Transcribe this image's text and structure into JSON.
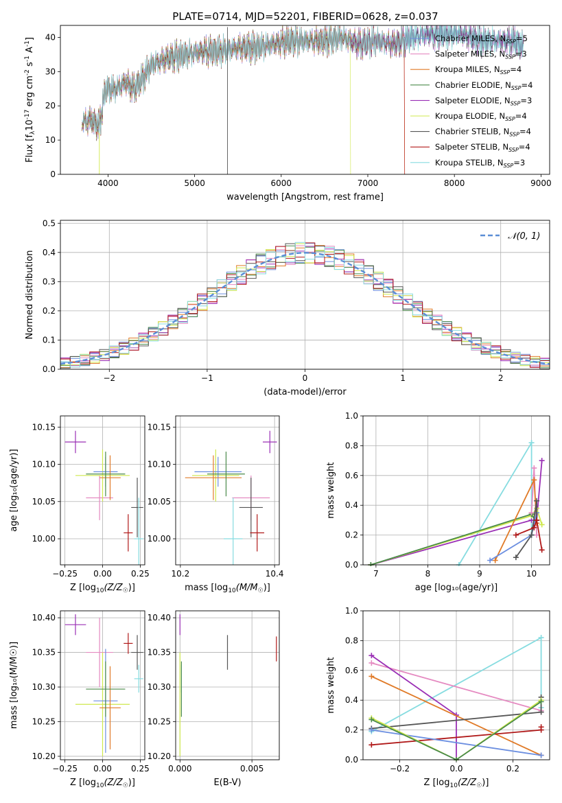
{
  "figure_title": "PLATE=0714, MJD=52201, FIBERID=0628, z=0.037",
  "colors": {
    "Chabrier MILES": "#6b8ee0",
    "Salpeter MILES": "#e58ac1",
    "Kroupa MILES": "#e07a27",
    "Chabrier ELODIE": "#4a8a4a",
    "Salpeter ELODIE": "#9a2fb5",
    "Kroupa ELODIE": "#cfe84c",
    "Chabrier STELIB": "#555555",
    "Salpeter STELIB": "#b01818",
    "Kroupa STELIB": "#86dce0"
  },
  "series_names": [
    "Chabrier MILES",
    "Salpeter MILES",
    "Kroupa MILES",
    "Chabrier ELODIE",
    "Salpeter ELODIE",
    "Kroupa ELODIE",
    "Chabrier STELIB",
    "Salpeter STELIB",
    "Kroupa STELIB"
  ],
  "chart_data": [
    {
      "id": "spectrum",
      "type": "line",
      "title": "PLATE=0714, MJD=52201, FIBERID=0628, z=0.037",
      "xlabel": "wavelength [Angstrom, rest frame]",
      "ylabel": "Flux [f",
      "ylabel_sub": "λ",
      "ylabel_rest": "10",
      "ylabel_sup1": "-17",
      "ylabel_rest2": " erg cm",
      "ylabel_sup2": "-2",
      "ylabel_rest3": " s",
      "ylabel_sup3": "-1",
      "ylabel_rest4": " A",
      "ylabel_sup4": "-1",
      "ylabel_end": "]",
      "xlim": [
        3450,
        9100
      ],
      "ylim": [
        0,
        43.5
      ],
      "xticks": [
        "4000",
        "5000",
        "6000",
        "7000",
        "8000",
        "9000"
      ],
      "yticks": [
        "0",
        "10",
        "20",
        "30",
        "40"
      ],
      "legend_position": "top-right",
      "legend": [
        {
          "label": "Chabrier MILES, N",
          "sub": "SSP",
          "value": "=5"
        },
        {
          "label": "Salpeter MILES, N",
          "sub": "SSP",
          "value": "=3"
        },
        {
          "label": "Kroupa MILES, N",
          "sub": "SSP",
          "value": "=4"
        },
        {
          "label": "Chabrier ELODIE, N",
          "sub": "SSP",
          "value": "=4"
        },
        {
          "label": "Salpeter ELODIE, N",
          "sub": "SSP",
          "value": "=3"
        },
        {
          "label": "Kroupa ELODIE, N",
          "sub": "SSP",
          "value": "=4"
        },
        {
          "label": "Chabrier STELIB, N",
          "sub": "SSP",
          "value": "=4"
        },
        {
          "label": "Salpeter STELIB, N",
          "sub": "SSP",
          "value": "=4"
        },
        {
          "label": "Kroupa STELIB, N",
          "sub": "SSP",
          "value": "=3"
        }
      ],
      "model_spectrum_anchors": [
        [
          3700,
          15
        ],
        [
          3800,
          16
        ],
        [
          3900,
          14
        ],
        [
          3970,
          25
        ],
        [
          4100,
          25
        ],
        [
          4200,
          27
        ],
        [
          4300,
          25
        ],
        [
          4400,
          28
        ],
        [
          4500,
          32
        ],
        [
          4700,
          34
        ],
        [
          4900,
          35
        ],
        [
          5100,
          36
        ],
        [
          5300,
          36
        ],
        [
          5500,
          37
        ],
        [
          5700,
          37
        ],
        [
          5900,
          38
        ],
        [
          6100,
          39
        ],
        [
          6300,
          39
        ],
        [
          6500,
          39
        ],
        [
          6700,
          40
        ],
        [
          6900,
          38
        ],
        [
          7100,
          39
        ],
        [
          7300,
          38
        ],
        [
          7500,
          40
        ],
        [
          7700,
          41
        ],
        [
          7900,
          41
        ],
        [
          8100,
          41
        ],
        [
          8300,
          39
        ],
        [
          8500,
          39
        ],
        [
          8700,
          39
        ],
        [
          8800,
          37
        ]
      ],
      "edge_drops": [
        {
          "series": "Kroupa ELODIE",
          "x": 6800
        },
        {
          "series": "Salpeter STELIB",
          "x": 7420
        },
        {
          "series": "Kroupa MILES",
          "x": 7420
        }
      ]
    },
    {
      "id": "residuals",
      "type": "area",
      "xlabel": "(data-model)/error",
      "ylabel": "Normed distribution",
      "xlim": [
        -2.5,
        2.5
      ],
      "ylim": [
        0,
        0.51
      ],
      "xticks": [
        "−2",
        "−1",
        "0",
        "1",
        "2"
      ],
      "yticks": [
        "0.0",
        "0.1",
        "0.2",
        "0.3",
        "0.4",
        "0.5"
      ],
      "reference_curve": {
        "name": "𝒩(0, 1)",
        "mean": 0,
        "std": 1,
        "color": "#5b8ed6",
        "style": "dashed"
      },
      "legend_position": "top-right",
      "bin_width": 0.1
    },
    {
      "id": "age-vs-Z",
      "type": "scatter",
      "xlabel": "Z [log",
      "xlabel_sub": "10",
      "xlabel_rest": "(Z/Z",
      "xlabel_sub2": "☉",
      "xlabel_end": ")]",
      "ylabel": "age  [log₁₀(age/yr)]",
      "xlim": [
        -0.28,
        0.28
      ],
      "ylim": [
        9.965,
        10.165
      ],
      "xticks": [
        "−0.25",
        "0.00",
        "0.25"
      ],
      "yticks": [
        "10.00",
        "10.05",
        "10.10",
        "10.15"
      ],
      "points": [
        {
          "series": "Salpeter ELODIE",
          "x": -0.18,
          "y": 10.13,
          "xerr": 0.07,
          "yerr": 0.015
        },
        {
          "series": "Salpeter MILES",
          "x": -0.02,
          "y": 10.055,
          "xerr": 0.09,
          "yerr": 0.03
        },
        {
          "series": "Kroupa ELODIE",
          "x": 0.0,
          "y": 10.085,
          "xerr": 0.18,
          "yerr": 0.035
        },
        {
          "series": "Chabrier MILES",
          "x": 0.02,
          "y": 10.09,
          "xerr": 0.08,
          "yerr": 0.02
        },
        {
          "series": "Kroupa MILES",
          "x": 0.05,
          "y": 10.082,
          "xerr": 0.07,
          "yerr": 0.03
        },
        {
          "series": "Chabrier ELODIE",
          "x": 0.02,
          "y": 10.087,
          "xerr": 0.13,
          "yerr": 0.03
        },
        {
          "series": "Chabrier STELIB",
          "x": 0.23,
          "y": 10.042,
          "xerr": 0.04,
          "yerr": 0.04
        },
        {
          "series": "Salpeter STELIB",
          "x": 0.17,
          "y": 10.008,
          "xerr": 0.03,
          "yerr": 0.025
        },
        {
          "series": "Kroupa STELIB",
          "x": 0.24,
          "y": 10.0,
          "xerr": 0.03,
          "yerr": 0.055
        }
      ]
    },
    {
      "id": "age-vs-mass",
      "type": "scatter",
      "xlabel": "mass [log",
      "xlabel_sub": "10",
      "xlabel_rest": "(M/M",
      "xlabel_sub2": "☉",
      "xlabel_end": ")]",
      "ylabel": "",
      "xlim": [
        10.19,
        10.41
      ],
      "ylim": [
        9.965,
        10.165
      ],
      "xticks": [
        "10.2",
        "10.4"
      ],
      "yticks": [
        "10.00",
        "10.05",
        "10.10",
        "10.15"
      ],
      "points": [
        {
          "series": "Salpeter ELODIE",
          "x": 10.39,
          "y": 10.13,
          "xerr": 0.015,
          "yerr": 0.015
        },
        {
          "series": "Salpeter MILES",
          "x": 10.35,
          "y": 10.055,
          "xerr": 0.04,
          "yerr": 0.03
        },
        {
          "series": "Kroupa ELODIE",
          "x": 10.275,
          "y": 10.085,
          "xerr": 0.05,
          "yerr": 0.035
        },
        {
          "series": "Chabrier MILES",
          "x": 10.28,
          "y": 10.09,
          "xerr": 0.05,
          "yerr": 0.02
        },
        {
          "series": "Kroupa MILES",
          "x": 10.27,
          "y": 10.082,
          "xerr": 0.06,
          "yerr": 0.03
        },
        {
          "series": "Chabrier ELODIE",
          "x": 10.297,
          "y": 10.087,
          "xerr": 0.04,
          "yerr": 0.03
        },
        {
          "series": "Chabrier STELIB",
          "x": 10.35,
          "y": 10.042,
          "xerr": 0.025,
          "yerr": 0.04
        },
        {
          "series": "Salpeter STELIB",
          "x": 10.363,
          "y": 10.008,
          "xerr": 0.015,
          "yerr": 0.025
        },
        {
          "series": "Kroupa STELIB",
          "x": 10.312,
          "y": 10.0,
          "xerr": 0.02,
          "yerr": 0.055
        }
      ]
    },
    {
      "id": "massweight-vs-age",
      "type": "line",
      "xlabel": "age  [log₁₀(age/yr)]",
      "ylabel": "mass weight",
      "xlim": [
        6.75,
        10.35
      ],
      "ylim": [
        0,
        1.0
      ],
      "xticks": [
        "7",
        "8",
        "9",
        "10"
      ],
      "yticks": [
        "0.0",
        "0.2",
        "0.4",
        "0.6",
        "0.8",
        "1.0"
      ],
      "series": [
        {
          "name": "Kroupa STELIB",
          "x": [
            8.6,
            10.0,
            10.0
          ],
          "y": [
            0.0,
            0.82,
            0.2
          ]
        },
        {
          "name": "Salpeter ELODIE",
          "x": [
            6.9,
            10.0,
            10.1,
            10.2
          ],
          "y": [
            0.0,
            0.3,
            0.3,
            0.7
          ]
        },
        {
          "name": "Kroupa ELODIE",
          "x": [
            6.9,
            10.0,
            10.1,
            10.2
          ],
          "y": [
            0.0,
            0.33,
            0.38,
            0.27
          ]
        },
        {
          "name": "Chabrier ELODIE",
          "x": [
            6.9,
            10.0,
            10.1
          ],
          "y": [
            0.0,
            0.34,
            0.28
          ]
        },
        {
          "name": "Salpeter MILES",
          "x": [
            10.0,
            10.05,
            10.1
          ],
          "y": [
            0.35,
            0.65,
            0.2
          ]
        },
        {
          "name": "Kroupa MILES",
          "x": [
            9.3,
            10.05,
            10.1
          ],
          "y": [
            0.03,
            0.57,
            0.28
          ]
        },
        {
          "name": "Chabrier MILES",
          "x": [
            9.2,
            10.0,
            10.1
          ],
          "y": [
            0.03,
            0.2,
            0.35
          ]
        },
        {
          "name": "Chabrier STELIB",
          "x": [
            9.7,
            10.0,
            10.1,
            10.1
          ],
          "y": [
            0.05,
            0.2,
            0.43,
            0.3
          ]
        },
        {
          "name": "Salpeter STELIB",
          "x": [
            9.7,
            10.05,
            10.1,
            10.2
          ],
          "y": [
            0.2,
            0.25,
            0.3,
            0.1
          ]
        }
      ]
    },
    {
      "id": "mass-vs-Z",
      "type": "scatter",
      "xlabel": "Z [log",
      "xlabel_sub": "10",
      "xlabel_rest": "(Z/Z",
      "xlabel_sub2": "☉",
      "xlabel_end": ")]",
      "ylabel": "mass [log₁₀(M/M☉)]",
      "xlim": [
        -0.28,
        0.28
      ],
      "ylim": [
        10.195,
        10.41
      ],
      "xticks": [
        "−0.25",
        "0.00",
        "0.25"
      ],
      "yticks": [
        "10.20",
        "10.25",
        "10.30",
        "10.35",
        "10.40"
      ],
      "points": [
        {
          "series": "Salpeter ELODIE",
          "x": -0.18,
          "y": 10.39,
          "xerr": 0.07,
          "yerr": 0.015
        },
        {
          "series": "Salpeter MILES",
          "x": -0.02,
          "y": 10.35,
          "xerr": 0.09,
          "yerr": 0.05
        },
        {
          "series": "Kroupa ELODIE",
          "x": 0.0,
          "y": 10.275,
          "xerr": 0.18,
          "yerr": 0.075
        },
        {
          "series": "Chabrier MILES",
          "x": 0.02,
          "y": 10.28,
          "xerr": 0.08,
          "yerr": 0.075
        },
        {
          "series": "Kroupa MILES",
          "x": 0.05,
          "y": 10.27,
          "xerr": 0.07,
          "yerr": 0.06
        },
        {
          "series": "Chabrier ELODIE",
          "x": 0.02,
          "y": 10.297,
          "xerr": 0.13,
          "yerr": 0.04
        },
        {
          "series": "Chabrier STELIB",
          "x": 0.23,
          "y": 10.35,
          "xerr": 0.04,
          "yerr": 0.025
        },
        {
          "series": "Salpeter STELIB",
          "x": 0.17,
          "y": 10.363,
          "xerr": 0.03,
          "yerr": 0.015
        },
        {
          "series": "Kroupa STELIB",
          "x": 0.24,
          "y": 10.312,
          "xerr": 0.03,
          "yerr": 0.02
        }
      ]
    },
    {
      "id": "mass-vs-ebv",
      "type": "scatter",
      "xlabel": "E(B-V)",
      "ylabel": "",
      "xlim": [
        -0.0003,
        0.0069
      ],
      "ylim": [
        10.195,
        10.41
      ],
      "xticks": [
        "0.000",
        "0.005"
      ],
      "yticks": [
        "10.20",
        "10.25",
        "10.30",
        "10.35",
        "10.40"
      ],
      "points": [
        {
          "series": "Salpeter ELODIE",
          "x": 0.0,
          "y": 10.39,
          "xerr": 0,
          "yerr": 0.015
        },
        {
          "series": "Kroupa STELIB",
          "x": 0.0001,
          "y": 10.312,
          "xerr": 0,
          "yerr": 0.02
        },
        {
          "series": "Chabrier ELODIE",
          "x": 0.0001,
          "y": 10.297,
          "xerr": 0,
          "yerr": 0.04
        },
        {
          "series": "Kroupa ELODIE",
          "x": 0.0,
          "y": 10.275,
          "xerr": 0,
          "yerr": 0.075
        },
        {
          "series": "Chabrier STELIB",
          "x": 0.0033,
          "y": 10.35,
          "xerr": 0,
          "yerr": 0.025
        },
        {
          "series": "Salpeter STELIB",
          "x": 0.0067,
          "y": 10.355,
          "xerr": 0,
          "yerr": 0.018
        }
      ]
    },
    {
      "id": "massweight-vs-Z",
      "type": "line",
      "xlabel": "Z [log",
      "xlabel_sub": "10",
      "xlabel_rest": "(Z/Z",
      "xlabel_sub2": "☉",
      "xlabel_end": ")]",
      "ylabel": "mass weight",
      "xlim": [
        -0.33,
        0.33
      ],
      "ylim": [
        0,
        1.0
      ],
      "xticks": [
        "−0.2",
        "0.0",
        "0.2"
      ],
      "yticks": [
        "0.0",
        "0.2",
        "0.4",
        "0.6",
        "0.8",
        "1.0"
      ],
      "series": [
        {
          "name": "Kroupa STELIB",
          "x": [
            -0.3,
            0.3,
            0.3
          ],
          "y": [
            0.19,
            0.82,
            0.35
          ]
        },
        {
          "name": "Salpeter MILES",
          "x": [
            -0.3,
            0.3
          ],
          "y": [
            0.65,
            0.33
          ]
        },
        {
          "name": "Salpeter ELODIE",
          "x": [
            -0.3,
            0.0,
            0.0
          ],
          "y": [
            0.7,
            0.3,
            0.0
          ]
        },
        {
          "name": "Kroupa MILES",
          "x": [
            -0.3,
            0.3
          ],
          "y": [
            0.56,
            0.03
          ]
        },
        {
          "name": "Chabrier STELIB",
          "x": [
            -0.3,
            0.3,
            0.3
          ],
          "y": [
            0.21,
            0.32,
            0.42
          ]
        },
        {
          "name": "Salpeter STELIB",
          "x": [
            -0.3,
            0.3,
            0.3
          ],
          "y": [
            0.1,
            0.2,
            0.22
          ]
        },
        {
          "name": "Chabrier MILES",
          "x": [
            -0.3,
            0.3
          ],
          "y": [
            0.2,
            0.03
          ]
        },
        {
          "name": "Kroupa ELODIE",
          "x": [
            -0.3,
            0.0,
            0.3
          ],
          "y": [
            0.28,
            0.0,
            0.4
          ]
        },
        {
          "name": "Chabrier ELODIE",
          "x": [
            -0.3,
            0.0,
            0.3
          ],
          "y": [
            0.27,
            0.0,
            0.39
          ]
        }
      ]
    }
  ]
}
